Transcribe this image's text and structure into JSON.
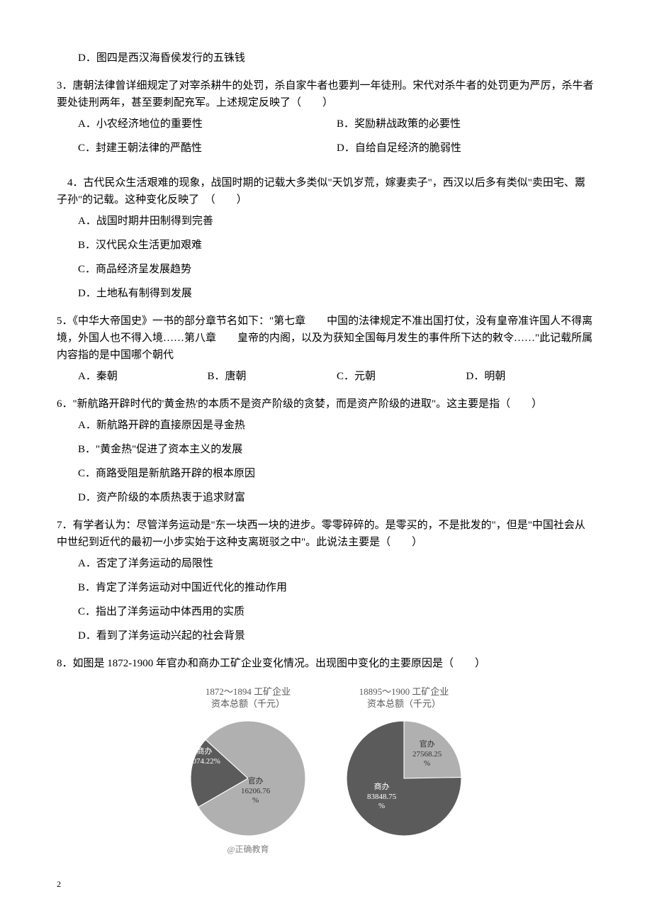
{
  "q2_opts": {
    "D": "D．图四是西汉海昏侯发行的五铢钱"
  },
  "q3": {
    "stem": "3．唐朝法律曾详细规定了对宰杀耕牛的处罚，杀自家牛者也要判一年徒刑。宋代对杀牛者的处罚更为严厉，杀牛者要处徒刑两年，甚至要刺配充军。上述规定反映了（　　）",
    "A": "A．小农经济地位的重要性",
    "B": "B．奖励耕战政策的必要性",
    "C": "C．封建王朝法律的严酷性",
    "D": "D．自给自足经济的脆弱性"
  },
  "q4": {
    "stem": "　4．古代民众生活艰难的现象，战国时期的记载大多类似\"天饥岁荒，嫁妻卖子\"，西汉以后多有类似\"卖田宅、鬻子孙\"的记载。这种变化反映了　（　　）",
    "A": "A．战国时期井田制得到完善",
    "B": "B．汉代民众生活更加艰难",
    "C": "C．商品经济呈发展趋势",
    "D": "D．土地私有制得到发展"
  },
  "q5": {
    "stem": "5．《中华大帝国史》一书的部分章节名如下：\"第七章　　中国的法律规定不准出国打仗，没有皇帝准许国人不得离境，外国人也不得入境……第八章　　皇帝的内阁，以及为获知全国每月发生的事件所下达的敕令……\"此记载所属内容指的是中国哪个朝代",
    "A": "A．秦朝",
    "B": "B．唐朝",
    "C": "C．元朝",
    "D": "D．明朝"
  },
  "q6": {
    "stem": "6．\"新航路开辟时代的'黄金热'的本质不是资产阶级的贪婪，而是资产阶级的进取\"。这主要是指（　　）",
    "A": "A．新航路开辟的直接原因是寻金热",
    "B": "B．\"黄金热\"促进了资本主义的发展",
    "C": "C．商路受阻是新航路开辟的根本原因",
    "D": "D．资产阶级的本质热衷于追求财富"
  },
  "q7": {
    "stem": "7．有学者认为：尽管洋务运动是\"东一块西一块的进步。零零碎碎的。是零买的，不是批发的\"，但是\"中国社会从中世纪到近代的最初一小步实始于这种支离斑驳之中\"。此说法主要是（　　）",
    "A": "A．否定了洋务运动的局限性",
    "B": "B．肯定了洋务运动对中国近代化的推动作用",
    "C": "C．指出了洋务运动中体西用的实质",
    "D": "D．看到了洋务运动兴起的社会背景"
  },
  "q8": {
    "stem": "8．如图是 1872-1900 年官办和商办工矿企业变化情况。出现图中变化的主要原因是（　　）"
  },
  "chart1": {
    "title_line1": "1872～1894 工矿企业",
    "title_line2": "资本总额（千元）",
    "slices": [
      {
        "label": "商办",
        "value": "4074.22%",
        "pct": 20.1,
        "color": "#5b5b5b"
      },
      {
        "label": "官办",
        "value": "16206.76",
        "unit": "%",
        "pct": 79.9,
        "color": "#b0b0b0"
      }
    ],
    "watermark": "@正确教育"
  },
  "chart2": {
    "title_line1": "18895～1900 工矿企业",
    "title_line2": "资本总额（千元）",
    "slices": [
      {
        "label": "官办",
        "value": "27568.25",
        "unit": "%",
        "pct": 24.7,
        "color": "#b0b0b0"
      },
      {
        "label": "商办",
        "value": "83848.75",
        "unit": "%",
        "pct": 75.3,
        "color": "#5b5b5b"
      }
    ]
  },
  "page_number": "2",
  "colors": {
    "text": "#000000",
    "bg": "#ffffff",
    "chart_text": "#595959",
    "watermark": "#808080"
  }
}
